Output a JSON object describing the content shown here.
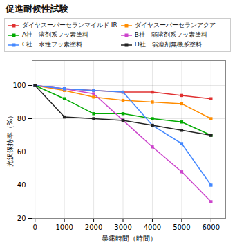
{
  "chart_data": {
    "type": "line",
    "title": "促進耐候性試験",
    "xlabel": "暴露時間（時間）",
    "ylabel": "光沢保持率（%）",
    "x": [
      0,
      1000,
      2000,
      3000,
      4000,
      5000,
      6000
    ],
    "xlim": [
      -100,
      6500
    ],
    "xticks": [
      0,
      1000,
      2000,
      3000,
      4000,
      5000,
      6000
    ],
    "ylim": [
      20,
      115
    ],
    "yticks": [
      20,
      40,
      60,
      80,
      100
    ],
    "grid": true,
    "legend": "top",
    "marker": "square",
    "series": [
      {
        "name": "ダイヤスーパーセランマイルド IR",
        "color": "#e03030",
        "values": [
          100,
          98,
          97,
          96,
          96,
          94,
          92
        ]
      },
      {
        "name": "ダイヤスーパーセランアクア",
        "color": "#ff8c00",
        "values": [
          100,
          97,
          93,
          91,
          90,
          89,
          80
        ]
      },
      {
        "name": "A社　溶剤系フッ素塗料",
        "color": "#00aa00",
        "values": [
          100,
          92,
          83,
          83,
          80,
          78,
          70
        ]
      },
      {
        "name": "B社　弱溶剤系フッ素塗料",
        "color": "#cc44cc",
        "values": [
          100,
          98,
          95,
          79,
          63,
          48,
          30
        ]
      },
      {
        "name": "C社　水性フッ素塗料",
        "color": "#4488ff",
        "values": [
          100,
          98,
          97,
          96,
          76,
          65,
          40
        ]
      },
      {
        "name": "D社　弱溶剤無機系塗料",
        "color": "#222222",
        "values": [
          100,
          81,
          80,
          79,
          76,
          73,
          70
        ]
      }
    ]
  }
}
